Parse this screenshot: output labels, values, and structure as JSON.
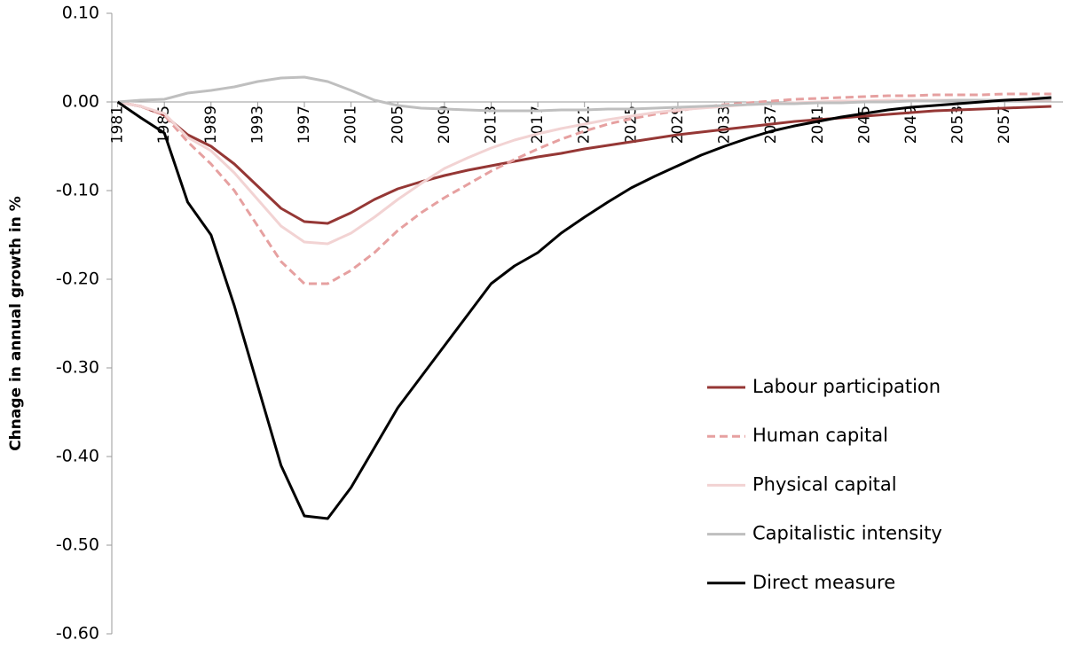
{
  "chart_data": {
    "type": "line",
    "y_label": "Chnage in annual growth in %",
    "x": [
      1981,
      1983,
      1985,
      1987,
      1989,
      1991,
      1993,
      1995,
      1997,
      1999,
      2001,
      2003,
      2005,
      2007,
      2009,
      2011,
      2013,
      2015,
      2017,
      2019,
      2021,
      2023,
      2025,
      2027,
      2029,
      2031,
      2033,
      2035,
      2037,
      2039,
      2041,
      2043,
      2045,
      2047,
      2049,
      2051,
      2053,
      2055,
      2057,
      2059,
      2061
    ],
    "xlim": [
      1980.5,
      2062
    ],
    "xticks": [
      1981,
      1985,
      1989,
      1993,
      1997,
      2001,
      2005,
      2009,
      2013,
      2017,
      2021,
      2025,
      2029,
      2033,
      2037,
      2041,
      2045,
      2049,
      2053,
      2057
    ],
    "ylim": [
      -0.6,
      0.1
    ],
    "yticks": [
      {
        "value": 0.1,
        "label": "0.10"
      },
      {
        "value": 0,
        "label": "0.00"
      },
      {
        "value": -0.1,
        "label": "-0.10"
      },
      {
        "value": -0.2,
        "label": "-0.20"
      },
      {
        "value": -0.3,
        "label": "-0.30"
      },
      {
        "value": -0.4,
        "label": "-0.40"
      },
      {
        "value": -0.5,
        "label": "-0.50"
      },
      {
        "value": -0.6,
        "label": "-0.60"
      }
    ],
    "grid": false,
    "legend_position": "right",
    "series": [
      {
        "name": "Labour participation",
        "color": "#953735",
        "dash": false,
        "values": [
          0,
          -0.005,
          -0.015,
          -0.037,
          -0.05,
          -0.07,
          -0.095,
          -0.12,
          -0.135,
          -0.137,
          -0.125,
          -0.11,
          -0.098,
          -0.09,
          -0.083,
          -0.077,
          -0.072,
          -0.067,
          -0.062,
          -0.058,
          -0.053,
          -0.049,
          -0.045,
          -0.041,
          -0.037,
          -0.034,
          -0.031,
          -0.028,
          -0.025,
          -0.022,
          -0.02,
          -0.018,
          -0.016,
          -0.014,
          -0.012,
          -0.01,
          -0.009,
          -0.008,
          -0.007,
          -0.006,
          -0.005
        ]
      },
      {
        "name": "Human capital",
        "color": "#e6a0a0",
        "dash": true,
        "values": [
          0,
          -0.005,
          -0.015,
          -0.045,
          -0.07,
          -0.1,
          -0.14,
          -0.18,
          -0.205,
          -0.205,
          -0.19,
          -0.17,
          -0.145,
          -0.125,
          -0.108,
          -0.093,
          -0.078,
          -0.065,
          -0.053,
          -0.042,
          -0.033,
          -0.025,
          -0.019,
          -0.014,
          -0.01,
          -0.006,
          -0.003,
          -0.001,
          0.001,
          0.003,
          0.004,
          0.005,
          0.006,
          0.007,
          0.007,
          0.008,
          0.008,
          0.008,
          0.009,
          0.009,
          0.009
        ]
      },
      {
        "name": "Physical capital",
        "color": "#f2d3d3",
        "dash": false,
        "values": [
          0,
          -0.005,
          -0.013,
          -0.04,
          -0.055,
          -0.08,
          -0.11,
          -0.14,
          -0.158,
          -0.16,
          -0.148,
          -0.13,
          -0.11,
          -0.092,
          -0.075,
          -0.063,
          -0.052,
          -0.043,
          -0.036,
          -0.03,
          -0.025,
          -0.02,
          -0.016,
          -0.012,
          -0.009,
          -0.007,
          -0.005,
          -0.003,
          -0.002,
          -0.001,
          0,
          0.001,
          0.001,
          0.002,
          0.002,
          0.002,
          0.002,
          0.002,
          0.002,
          0.002,
          0.002
        ]
      },
      {
        "name": "Capitalistic intensity",
        "color": "#bfbfbf",
        "dash": false,
        "values": [
          0,
          0.002,
          0.003,
          0.01,
          0.013,
          0.017,
          0.023,
          0.027,
          0.028,
          0.023,
          0.013,
          0.002,
          -0.004,
          -0.007,
          -0.008,
          -0.009,
          -0.01,
          -0.01,
          -0.01,
          -0.009,
          -0.009,
          -0.008,
          -0.008,
          -0.007,
          -0.006,
          -0.005,
          -0.004,
          -0.003,
          -0.002,
          -0.002,
          -0.001,
          -0.001,
          0,
          0,
          0.001,
          0.001,
          0.002,
          0.002,
          0.002,
          0.003,
          0.003
        ]
      },
      {
        "name": "Direct measure",
        "color": "#000000",
        "dash": false,
        "values": [
          0,
          -0.018,
          -0.035,
          -0.113,
          -0.15,
          -0.23,
          -0.32,
          -0.41,
          -0.467,
          -0.47,
          -0.435,
          -0.39,
          -0.345,
          -0.31,
          -0.275,
          -0.24,
          -0.205,
          -0.185,
          -0.17,
          -0.148,
          -0.13,
          -0.113,
          -0.097,
          -0.084,
          -0.072,
          -0.06,
          -0.05,
          -0.041,
          -0.033,
          -0.027,
          -0.022,
          -0.017,
          -0.013,
          -0.009,
          -0.006,
          -0.004,
          -0.002,
          0,
          0.002,
          0.003,
          0.005
        ]
      }
    ]
  }
}
